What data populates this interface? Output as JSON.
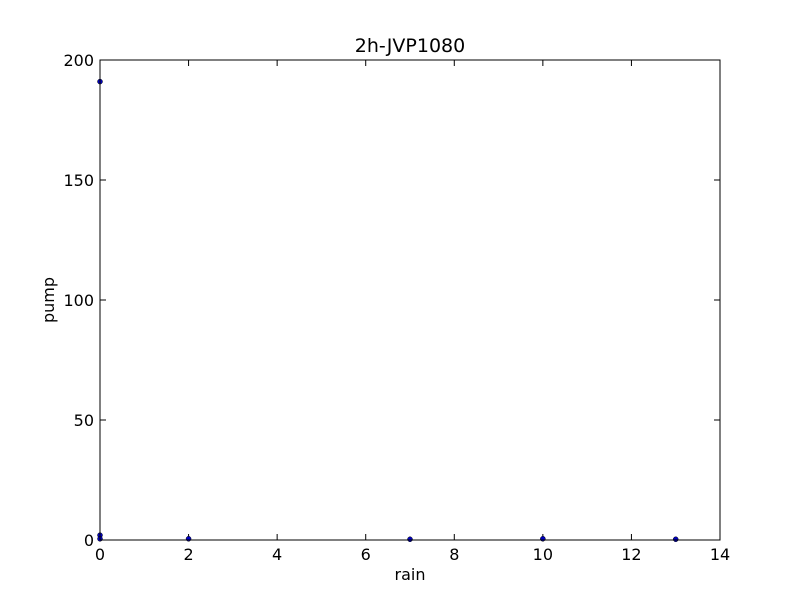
{
  "chart_data": {
    "type": "scatter",
    "title": "2h-JVP1080",
    "xlabel": "rain",
    "ylabel": "pump",
    "xlim": [
      0,
      14
    ],
    "ylim": [
      0,
      200
    ],
    "xticks": [
      0,
      2,
      4,
      6,
      8,
      10,
      12,
      14
    ],
    "yticks": [
      0,
      50,
      100,
      150,
      200
    ],
    "grid": false,
    "series": [
      {
        "color": "#0000bf",
        "points": [
          {
            "x": 0,
            "y": 191
          },
          {
            "x": 0,
            "y": 2
          },
          {
            "x": 0,
            "y": 0.5
          },
          {
            "x": 2,
            "y": 0.5
          },
          {
            "x": 7,
            "y": 0.3
          },
          {
            "x": 10,
            "y": 0.5
          },
          {
            "x": 13,
            "y": 0.3
          }
        ]
      }
    ]
  }
}
